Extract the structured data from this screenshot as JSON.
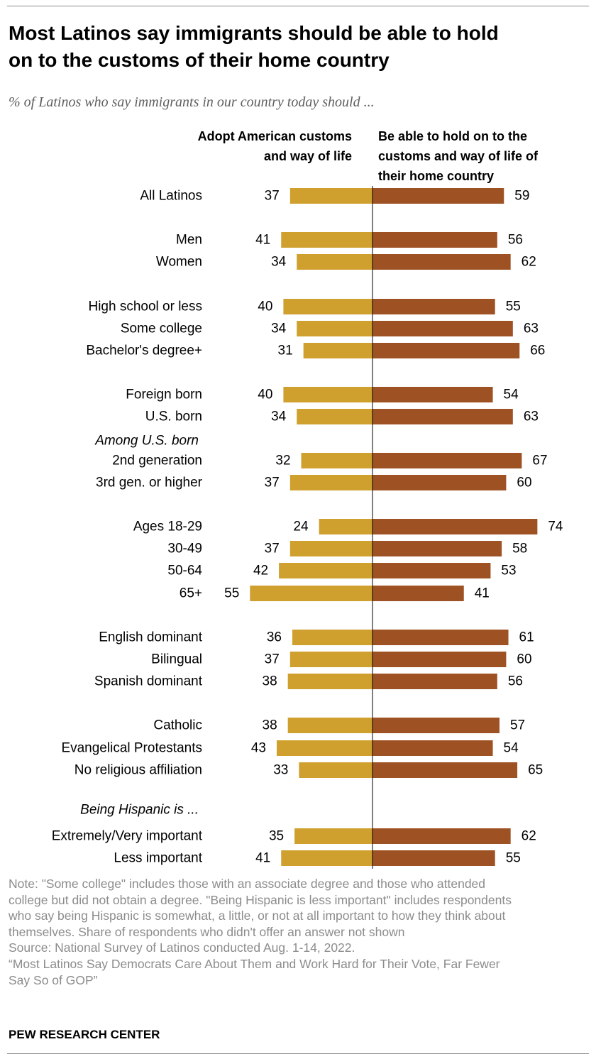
{
  "title_lines": [
    "Most Latinos say immigrants should be able to hold",
    "on to the customs of their home country"
  ],
  "subtitle": "% of Latinos who say immigrants in our country today should ...",
  "column_headers": {
    "left": [
      "Adopt American customs",
      "and way of life"
    ],
    "right": [
      "Be able to hold on to the",
      "customs and way of life of",
      "their home country"
    ]
  },
  "colors": {
    "adopt": "#CFA02E",
    "hold": "#9E5224",
    "axis": "#000000"
  },
  "chart_data": {
    "type": "bar",
    "orientation": "horizontal-diverging",
    "series": [
      {
        "name": "Adopt American customs and way of life",
        "color": "#CFA02E"
      },
      {
        "name": "Be able to hold on to the customs and way of life of their home country",
        "color": "#9E5224"
      }
    ],
    "section_labels": [
      "Among U.S. born",
      "Being Hispanic is ..."
    ],
    "categories": [
      "All Latinos",
      "Men",
      "Women",
      "High school or less",
      "Some college",
      "Bachelor's degree+",
      "Foreign born",
      "U.S. born",
      "2nd generation",
      "3rd gen. or higher",
      "Ages 18-29",
      "30-49",
      "50-64",
      "65+",
      "English dominant",
      "Bilingual",
      "Spanish dominant",
      "Catholic",
      "Evangelical Protestants",
      "No religious affiliation",
      "Extremely/Very important",
      "Less important"
    ],
    "adopt": [
      37,
      41,
      34,
      40,
      34,
      31,
      40,
      34,
      32,
      37,
      24,
      37,
      42,
      55,
      36,
      37,
      38,
      38,
      43,
      33,
      35,
      41
    ],
    "hold": [
      59,
      56,
      62,
      55,
      63,
      66,
      54,
      63,
      67,
      60,
      74,
      58,
      53,
      41,
      61,
      60,
      56,
      57,
      54,
      65,
      62,
      55
    ]
  },
  "notes": [
    "Note: \"Some college\" includes those with an associate degree and those who attended",
    "college but did not obtain a degree. \"Being Hispanic is less important\" includes respondents",
    "who say being Hispanic is somewhat, a little, or not at all important to how they think about",
    "themselves. Share of respondents who didn't offer an answer not shown",
    "Source: National Survey of Latinos conducted Aug. 1-14, 2022.",
    "“Most Latinos Say Democrats Care About Them and Work Hard for Their Vote, Far Fewer",
    "Say So of GOP”"
  ],
  "brand": "PEW RESEARCH CENTER"
}
